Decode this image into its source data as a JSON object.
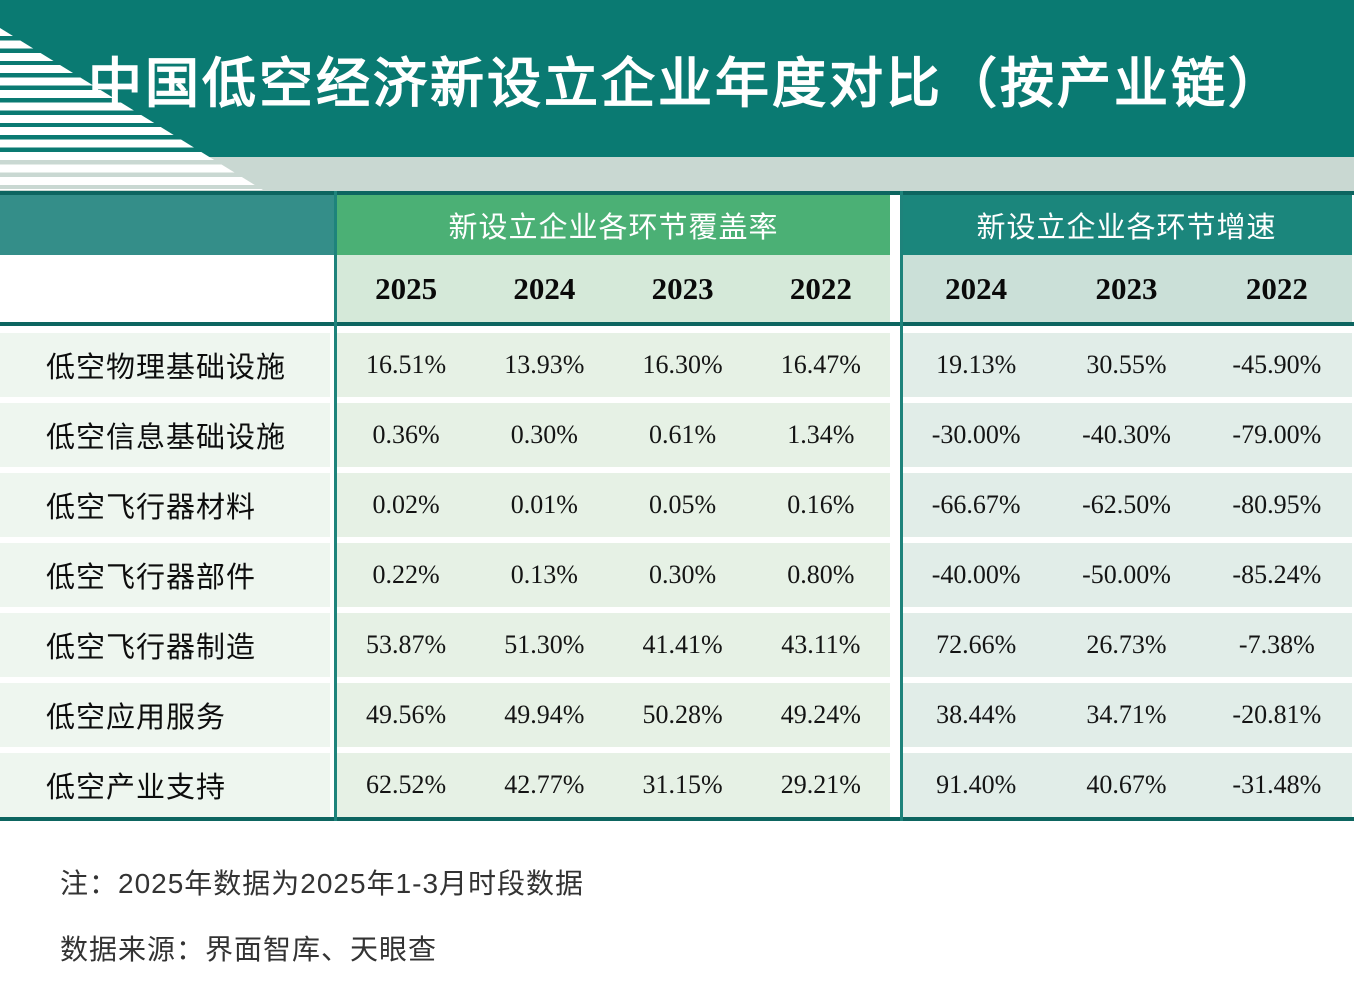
{
  "chart_data": {
    "type": "table",
    "title": "中国低空经济新设立企业年度对比（按产业链）",
    "col_groups": [
      {
        "header": "新设立企业各环节覆盖率",
        "years": [
          "2025",
          "2024",
          "2023",
          "2022"
        ]
      },
      {
        "header": "新设立企业各环节增速",
        "years": [
          "2024",
          "2023",
          "2022"
        ]
      }
    ],
    "rows": [
      {
        "label": "低空物理基础设施",
        "coverage": [
          "16.51%",
          "13.93%",
          "16.30%",
          "16.47%"
        ],
        "growth": [
          "19.13%",
          "30.55%",
          "-45.90%"
        ]
      },
      {
        "label": "低空信息基础设施",
        "coverage": [
          "0.36%",
          "0.30%",
          "0.61%",
          "1.34%"
        ],
        "growth": [
          "-30.00%",
          "-40.30%",
          "-79.00%"
        ]
      },
      {
        "label": "低空飞行器材料",
        "coverage": [
          "0.02%",
          "0.01%",
          "0.05%",
          "0.16%"
        ],
        "growth": [
          "-66.67%",
          "-62.50%",
          "-80.95%"
        ]
      },
      {
        "label": "低空飞行器部件",
        "coverage": [
          "0.22%",
          "0.13%",
          "0.30%",
          "0.80%"
        ],
        "growth": [
          "-40.00%",
          "-50.00%",
          "-85.24%"
        ]
      },
      {
        "label": "低空飞行器制造",
        "coverage": [
          "53.87%",
          "51.30%",
          "41.41%",
          "43.11%"
        ],
        "growth": [
          "72.66%",
          "26.73%",
          "-7.38%"
        ]
      },
      {
        "label": "低空应用服务",
        "coverage": [
          "49.56%",
          "49.94%",
          "50.28%",
          "49.24%"
        ],
        "growth": [
          "38.44%",
          "34.71%",
          "-20.81%"
        ]
      },
      {
        "label": "低空产业支持",
        "coverage": [
          "62.52%",
          "42.77%",
          "31.15%",
          "29.21%"
        ],
        "growth": [
          "91.40%",
          "40.67%",
          "-31.48%"
        ]
      }
    ],
    "notes": [
      "注：2025年数据为2025年1-3月时段数据",
      "数据来源：界面智库、天眼查"
    ],
    "layout_hints": {
      "legend_position": "none",
      "grid": "banded-rows"
    }
  },
  "colors": {
    "title_bar": "#0a7a72",
    "decor_band": "#c9d8d2",
    "corner_cell": "#348e89",
    "coverage_header_bg": "#4bb075",
    "growth_header_bg": "#1b867c",
    "coverage_year_bg": "#d5e9d9",
    "growth_year_bg": "#cbe0d8",
    "label_cell_bg": "#eef6ef",
    "coverage_cell_bg": "#e6f1e5",
    "growth_cell_bg": "#e1ede8",
    "divider_line": "#0d6560",
    "vertical_line": "#1e837b",
    "title_text": "#ffffff",
    "data_text": "#141414"
  }
}
